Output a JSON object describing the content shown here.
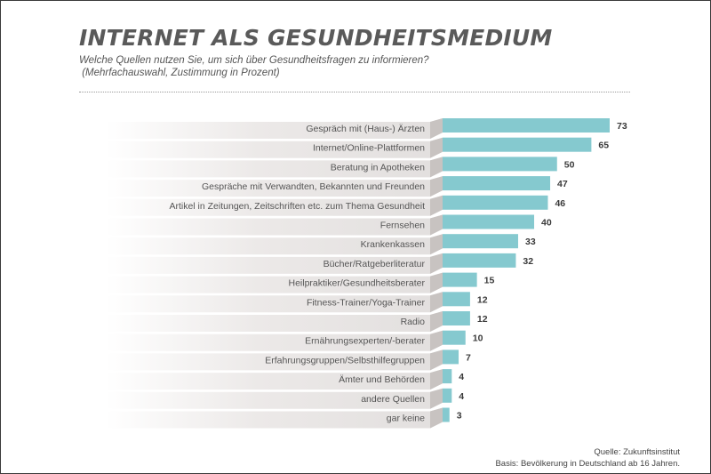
{
  "header": {
    "title": "INTERNET ALS GESUNDHEITSMEDIUM",
    "subtitle_line1": "Welche Quellen nutzen Sie, um sich über Gesundheitsfragen zu informieren?",
    "subtitle_line2": " (Mehrfachauswahl, Zustimmung in Prozent)"
  },
  "footer": {
    "source": "Quelle: Zukunftsinstitut",
    "basis": "Basis: Bevölkerung in Deutschland ab 16 Jahren."
  },
  "colors": {
    "bar": "#85c9cf",
    "label_band": "#e6e3e2",
    "label_band_dark": "#c8c3c1",
    "label_text": "#555555",
    "value_text": "#3a3a3a"
  },
  "chart_data": {
    "type": "bar",
    "orientation": "horizontal",
    "title": "INTERNET ALS GESUNDHEITSMEDIUM",
    "categories": [
      "Gespräch mit (Haus-) Ärzten",
      "Internet/Online-Plattformen",
      "Beratung in Apotheken",
      "Gespräche mit Verwandten, Bekannten und Freunden",
      "Artikel in Zeitungen, Zeitschriften etc. zum Thema Gesundheit",
      "Fernsehen",
      "Krankenkassen",
      "Bücher/Ratgeberliteratur",
      "Heilpraktiker/Gesundheitsberater",
      "Fitness-Trainer/Yoga-Trainer",
      "Radio",
      "Ernährungsexperten/-berater",
      "Erfahrungsgruppen/Selbsthilfegruppen",
      "Ämter und Behörden",
      "andere Quellen",
      "gar keine"
    ],
    "values": [
      73,
      65,
      50,
      47,
      46,
      40,
      33,
      32,
      15,
      12,
      12,
      10,
      7,
      4,
      4,
      3
    ],
    "value_labels": [
      "73",
      "65",
      "50",
      "47",
      "46",
      "40",
      "33",
      "32",
      "15",
      "12",
      "12",
      "10",
      "7",
      "4",
      "4",
      "3"
    ],
    "xlim": [
      0,
      73
    ],
    "grid": false,
    "legend": "none"
  }
}
